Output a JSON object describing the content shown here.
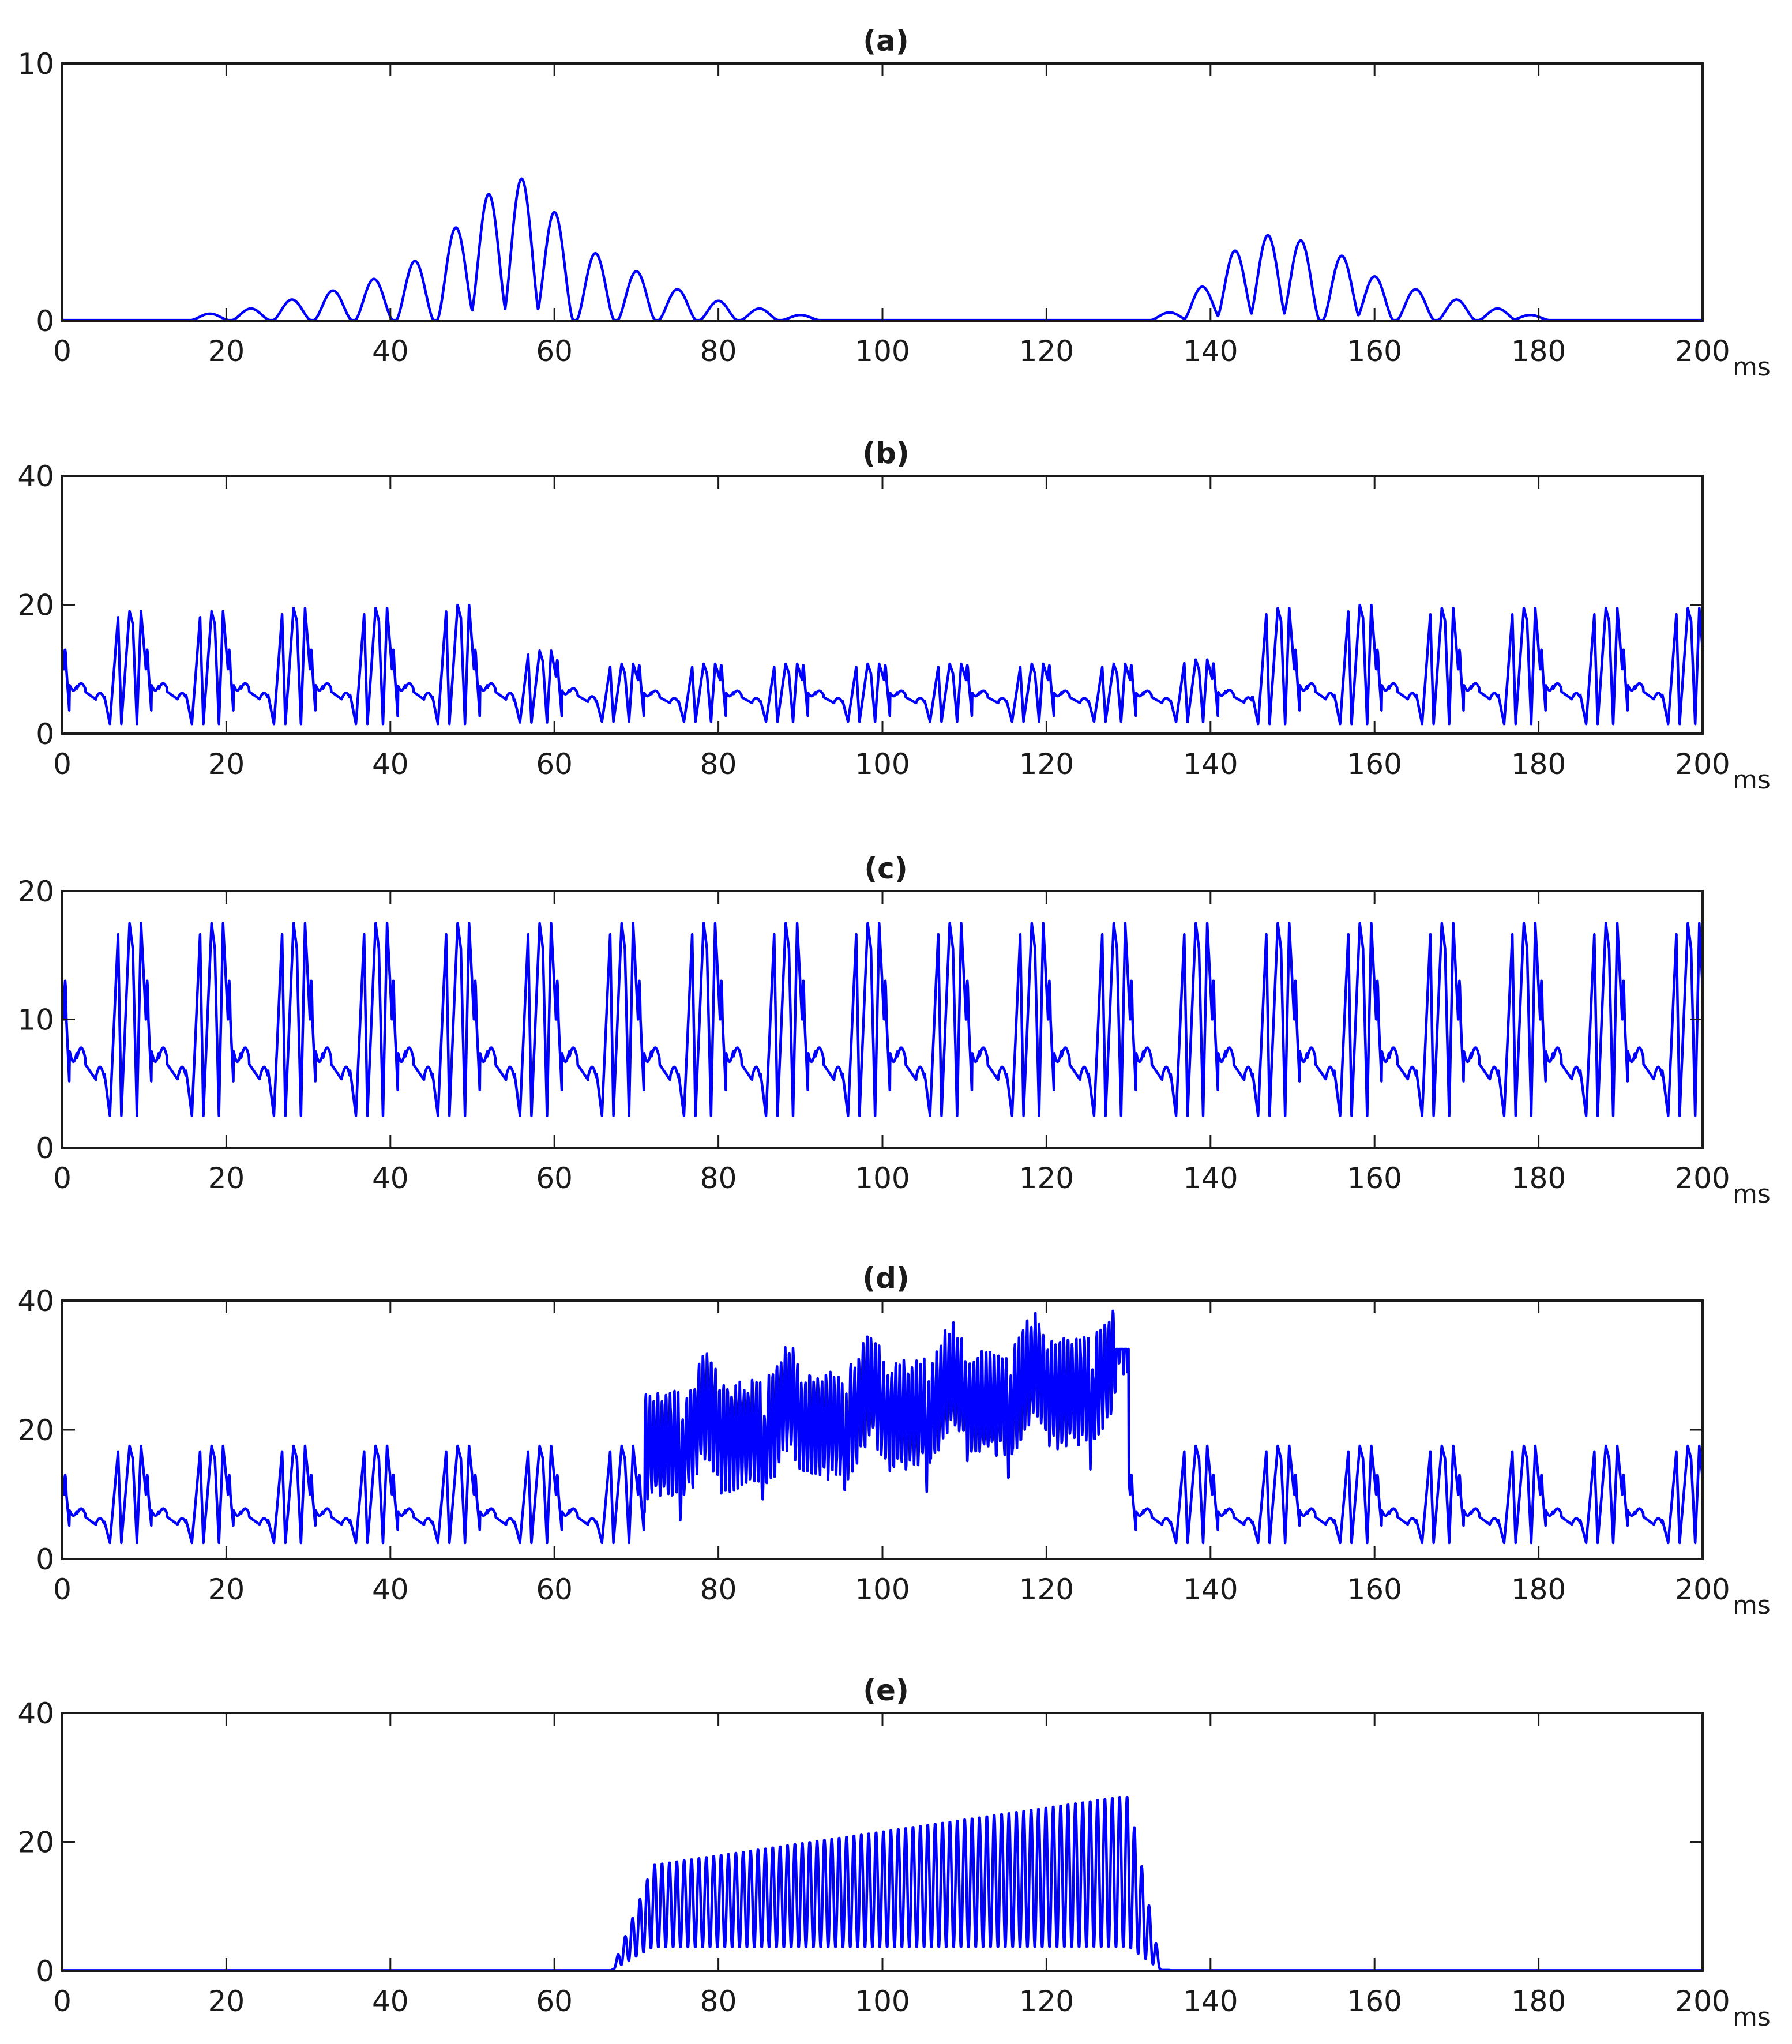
{
  "chart_data": [
    {
      "type": "line",
      "title": "(a)",
      "xlabel": "ms",
      "xlim": [
        0,
        200
      ],
      "ylim": [
        0,
        10
      ],
      "xticks": [
        0,
        20,
        40,
        60,
        80,
        100,
        120,
        140,
        160,
        180,
        200
      ],
      "yticks": [
        0,
        10
      ],
      "grid": false,
      "line_color": "#0000ff",
      "series": [
        {
          "sample_step_ms": 0.1,
          "peaks": [
            {
              "x": 18,
              "y": 0.25
            },
            {
              "x": 23,
              "y": 0.45
            },
            {
              "x": 28,
              "y": 0.8
            },
            {
              "x": 33,
              "y": 1.15
            },
            {
              "x": 38,
              "y": 1.6
            },
            {
              "x": 43,
              "y": 2.3
            },
            {
              "x": 48,
              "y": 3.6
            },
            {
              "x": 52,
              "y": 4.9
            },
            {
              "x": 56,
              "y": 5.5
            },
            {
              "x": 60,
              "y": 4.2
            },
            {
              "x": 65,
              "y": 2.6
            },
            {
              "x": 70,
              "y": 1.9
            },
            {
              "x": 75,
              "y": 1.2
            },
            {
              "x": 80,
              "y": 0.75
            },
            {
              "x": 85,
              "y": 0.45
            },
            {
              "x": 90,
              "y": 0.2
            },
            {
              "x": 135,
              "y": 0.3
            },
            {
              "x": 139,
              "y": 1.3
            },
            {
              "x": 143,
              "y": 2.7
            },
            {
              "x": 147,
              "y": 3.3
            },
            {
              "x": 151,
              "y": 3.1
            },
            {
              "x": 156,
              "y": 2.5
            },
            {
              "x": 160,
              "y": 1.7
            },
            {
              "x": 165,
              "y": 1.2
            },
            {
              "x": 170,
              "y": 0.8
            },
            {
              "x": 175,
              "y": 0.45
            },
            {
              "x": 179,
              "y": 0.2
            }
          ]
        }
      ]
    },
    {
      "type": "line",
      "title": "(b)",
      "xlabel": "ms",
      "xlim": [
        0,
        200
      ],
      "ylim": [
        0,
        40
      ],
      "xticks": [
        0,
        20,
        40,
        60,
        80,
        100,
        120,
        140,
        160,
        180,
        200
      ],
      "yticks": [
        0,
        20,
        40
      ],
      "grid": false,
      "line_color": "#0000ff",
      "series": [
        {
          "sample_step_ms": 0.05,
          "period_ms": 10,
          "cycle_peak_values": [
            20.5,
            20,
            20,
            20.5,
            20.5,
            21,
            15.5,
            14,
            14,
            14,
            14,
            14,
            14,
            14,
            14.5,
            20.5,
            21,
            20.5,
            20.5,
            20.5,
            20.5
          ],
          "minimum": 1.5
        }
      ]
    },
    {
      "type": "line",
      "title": "(c)",
      "xlabel": "ms",
      "xlim": [
        0,
        200
      ],
      "ylim": [
        0,
        20
      ],
      "xticks": [
        0,
        20,
        40,
        60,
        80,
        100,
        120,
        140,
        160,
        180,
        200
      ],
      "yticks": [
        0,
        10,
        20
      ],
      "grid": false,
      "line_color": "#0000ff",
      "series": [
        {
          "sample_step_ms": 0.05,
          "period_ms": 10,
          "peak": 17.5,
          "minimum": 2.5
        }
      ]
    },
    {
      "type": "line",
      "title": "(d)",
      "xlabel": "ms",
      "xlim": [
        0,
        200
      ],
      "ylim": [
        0,
        40
      ],
      "xticks": [
        0,
        20,
        40,
        60,
        80,
        100,
        120,
        140,
        160,
        180,
        200
      ],
      "yticks": [
        0,
        20,
        40
      ],
      "grid": false,
      "line_color": "#0000ff",
      "series": [
        {
          "sample_step_ms": 0.05,
          "period_ms": 10,
          "peak": 17.5,
          "minimum": 2.5,
          "burst_start_ms": 71,
          "burst_end_ms": 130,
          "burst_level_start": 17,
          "burst_level_end": 27,
          "burst_max": 32.5
        }
      ]
    },
    {
      "type": "line",
      "title": "(e)",
      "xlabel": "ms",
      "xlim": [
        0,
        200
      ],
      "ylim": [
        0,
        40
      ],
      "xticks": [
        0,
        20,
        40,
        60,
        80,
        100,
        120,
        140,
        160,
        180,
        200
      ],
      "yticks": [
        0,
        20,
        40
      ],
      "grid": false,
      "line_color": "#0000ff",
      "series": [
        {
          "sample_step_ms": 0.05,
          "burst_start_ms": 70,
          "burst_end_ms": 131,
          "upper_envelope_start": 16,
          "upper_envelope_end": 27,
          "lower_level": 3.5,
          "oscillation_period_ms": 0.9
        }
      ]
    }
  ]
}
